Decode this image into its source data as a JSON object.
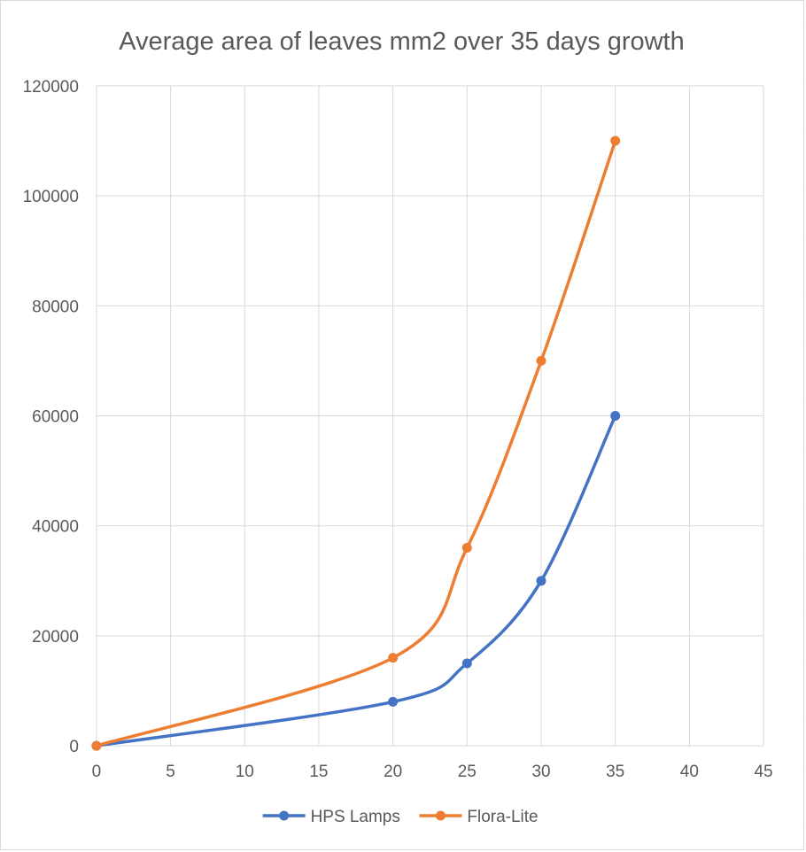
{
  "chart_data": {
    "type": "scatter",
    "title": "Average area of leaves mm2 over 35 days growth",
    "xlabel": "",
    "ylabel": "",
    "xlim": [
      0,
      45
    ],
    "ylim": [
      0,
      120000
    ],
    "xticks": [
      0,
      5,
      10,
      15,
      20,
      25,
      30,
      35,
      40,
      45
    ],
    "yticks": [
      0,
      20000,
      40000,
      60000,
      80000,
      100000,
      120000
    ],
    "grid": true,
    "smooth": true,
    "legend_position": "bottom",
    "series": [
      {
        "name": "HPS Lamps",
        "color": "#4472C4",
        "x": [
          0,
          20,
          25,
          30,
          35
        ],
        "y": [
          0,
          8000,
          15000,
          30000,
          60000
        ]
      },
      {
        "name": "Flora-Lite",
        "color": "#ED7D31",
        "x": [
          0,
          20,
          25,
          30,
          35
        ],
        "y": [
          0,
          16000,
          36000,
          70000,
          110000
        ]
      }
    ]
  }
}
